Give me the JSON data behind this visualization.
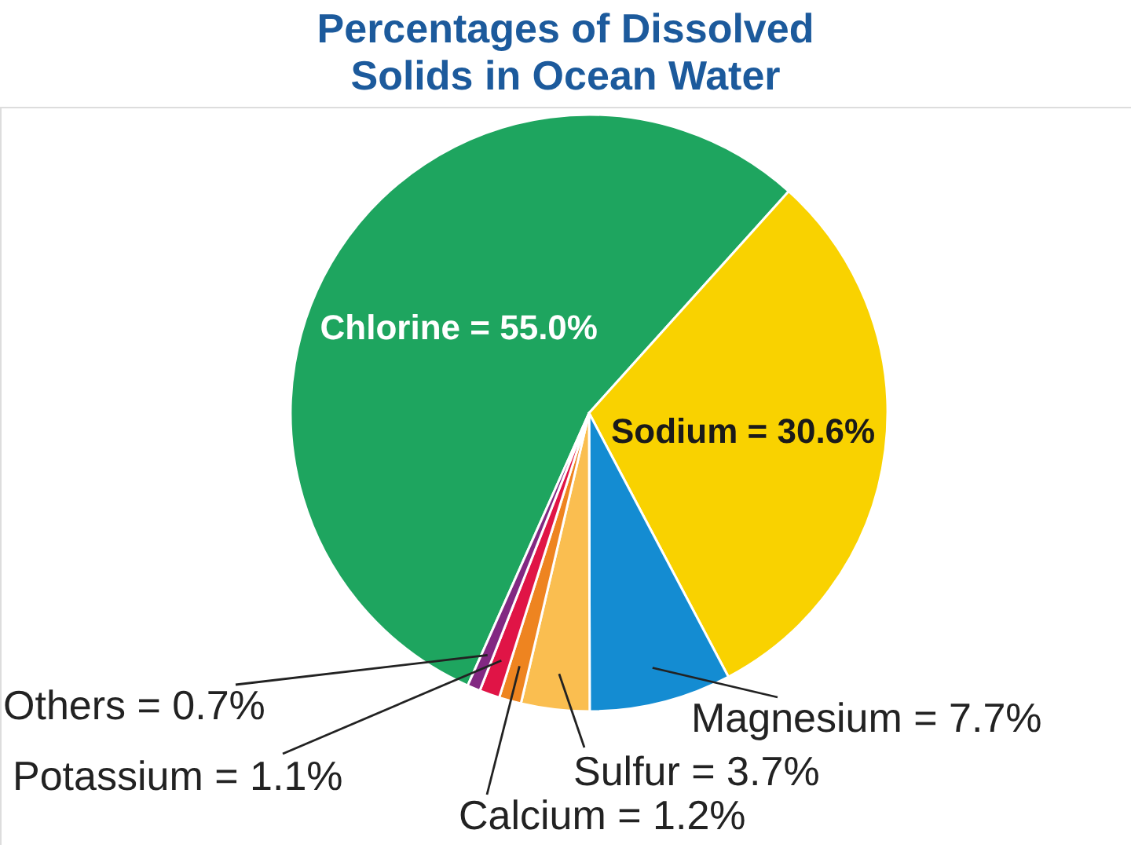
{
  "chart_data": {
    "type": "pie",
    "title": "Percentages of Dissolved Solids in Ocean Water",
    "categories": [
      "Chlorine",
      "Sodium",
      "Magnesium",
      "Sulfur",
      "Calcium",
      "Potassium",
      "Others"
    ],
    "values": [
      55.0,
      30.6,
      7.7,
      3.7,
      1.2,
      1.1,
      0.7
    ],
    "value_labels": [
      "= 55.0%",
      "= 30.6%",
      "= 7.7%",
      "= 3.7%",
      "= 1.2%",
      "= 1.1%",
      "= 0.7%"
    ],
    "colors": [
      "#1ea55f",
      "#f9d200",
      "#148cd2",
      "#fabe50",
      "#ee8420",
      "#e01446",
      "#822882"
    ]
  }
}
